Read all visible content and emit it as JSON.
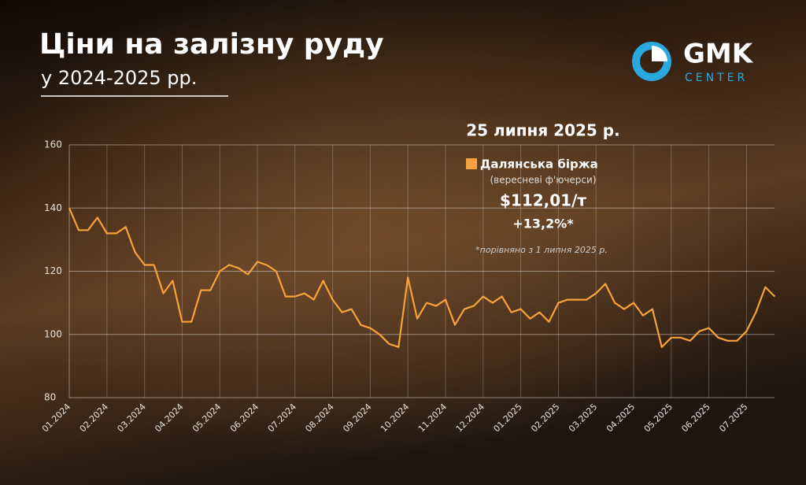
{
  "chart_data": {
    "type": "line",
    "title": "Ціни на залізну руду",
    "subtitle": "у 2024-2025 рр.",
    "logo": {
      "name": "GMK",
      "tagline": "CENTER"
    },
    "annotations": {
      "date": "25 липня 2025 р.",
      "price": "$112,01/т",
      "change": "+13,2%*",
      "note": "*порівняно з 1 липня 2025 р."
    },
    "categories": [
      "01.2024",
      null,
      null,
      null,
      "02.2024",
      null,
      null,
      null,
      "03.2024",
      null,
      null,
      null,
      "04.2024",
      null,
      null,
      null,
      "05.2024",
      null,
      null,
      null,
      "06.2024",
      null,
      null,
      null,
      "07.2024",
      null,
      null,
      null,
      "08.2024",
      null,
      null,
      null,
      "09.2024",
      null,
      null,
      null,
      "10.2024",
      null,
      null,
      null,
      "11.2024",
      null,
      null,
      null,
      "12.2024",
      null,
      null,
      null,
      "01.2025",
      null,
      null,
      null,
      "02.2025",
      null,
      null,
      null,
      "03.2025",
      null,
      null,
      null,
      "04.2025",
      null,
      null,
      null,
      "05.2025",
      null,
      null,
      null,
      "06.2025",
      null,
      null,
      null,
      "07.2025",
      null,
      null,
      null
    ],
    "series": [
      {
        "name": "Далянська біржа",
        "subname": "(вересневі ф'ючерси)",
        "color": "#f7a23a",
        "values": [
          140,
          133,
          133,
          137,
          132,
          132,
          134,
          126,
          122,
          122,
          113,
          117,
          104,
          104,
          114,
          114,
          120,
          122,
          121,
          119,
          123,
          122,
          120,
          112,
          112,
          113,
          111,
          117,
          111,
          107,
          108,
          103,
          102,
          100,
          97,
          96,
          118,
          105,
          110,
          109,
          111,
          103,
          108,
          109,
          112,
          110,
          112,
          107,
          108,
          105,
          107,
          104,
          110,
          111,
          111,
          111,
          113,
          116,
          110,
          108,
          110,
          106,
          108,
          96,
          99,
          99,
          98,
          101,
          102,
          99,
          98,
          98,
          101,
          107,
          115,
          112.01
        ]
      }
    ],
    "ylim": [
      80,
      160
    ],
    "yticks": [
      80,
      100,
      120,
      140,
      160
    ],
    "grid": true
  }
}
